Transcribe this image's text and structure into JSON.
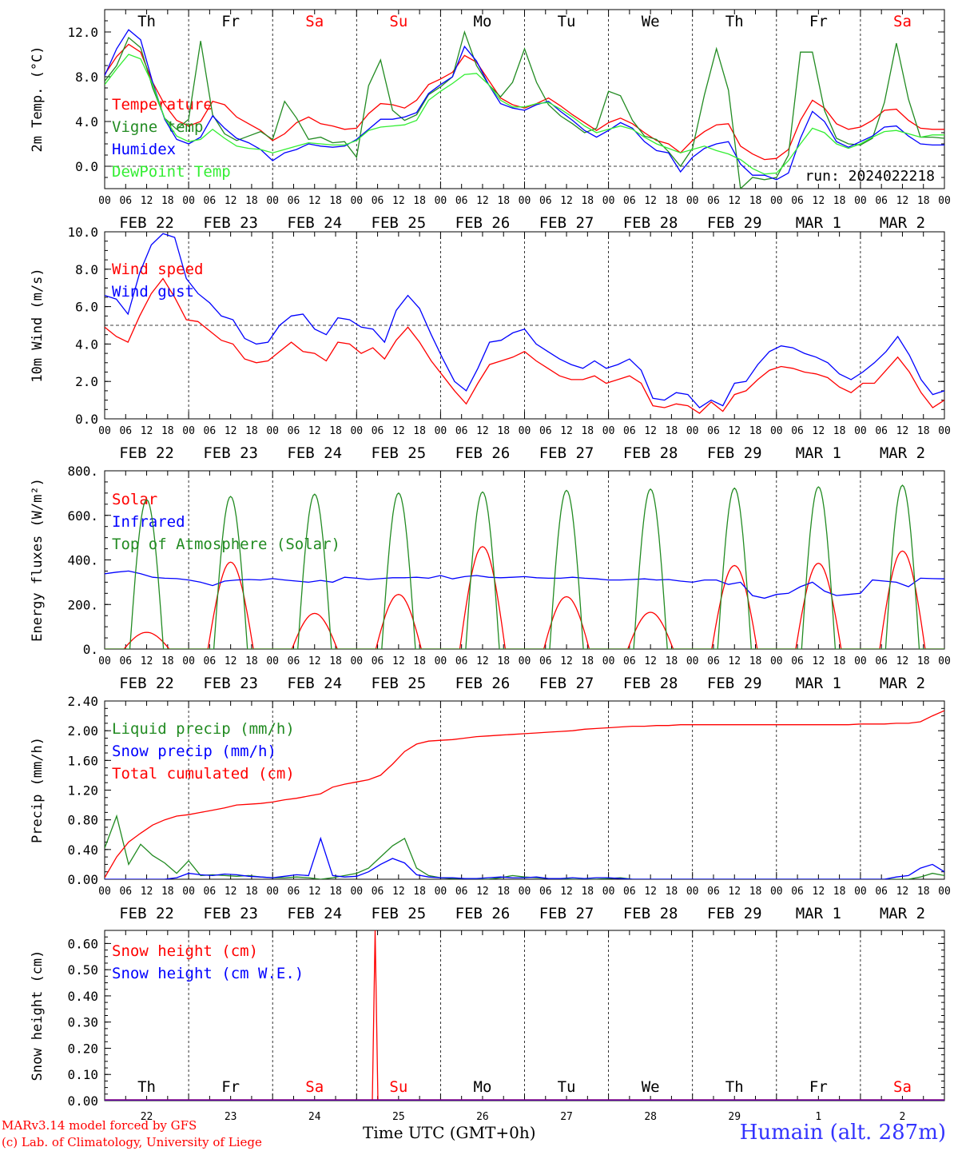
{
  "run_label": "run: 2024022218",
  "time_axis_label": "Time UTC (GMT+0h)",
  "model_credit": "MARv3.14 model forced by GFS",
  "lab_credit": "(c) Lab. of Climatology, University of Liege",
  "station_label": "Humain (alt. 287m)",
  "colors": {
    "red": "#ff0000",
    "green": "#228b22",
    "blue": "#0000ff",
    "lightgreen": "#33ee33",
    "purple": "#800080",
    "station": "#3333ff"
  },
  "chart_data": [
    {
      "type": "line",
      "ylabel": "2m Temp. (°C)",
      "ylim": [
        -2,
        14
      ],
      "yticks": [
        "12.0",
        "8.0",
        "4.0",
        "0.0"
      ],
      "reference_line": 0,
      "x": {
        "start": "2024-02-22 00:00",
        "end": "2024-03-03 00:00",
        "step_hours": 6
      },
      "day_names": [
        "Th",
        "Fr",
        "Sa",
        "Su",
        "Mo",
        "Tu",
        "We",
        "Th",
        "Fr",
        "Sa"
      ],
      "date_labels": [
        "FEB 22",
        "FEB 23",
        "FEB 24",
        "FEB 25",
        "FEB 26",
        "FEB 27",
        "FEB 28",
        "FEB 29",
        "MAR  1",
        "MAR  2"
      ],
      "hour_labels": [
        "00",
        "06",
        "12",
        "18"
      ],
      "series": [
        {
          "name": "Temperature",
          "color": "red",
          "values": [
            8.2,
            9.8,
            10.9,
            10.2,
            7.5,
            5.5,
            4.1,
            3.6,
            4.0,
            5.8,
            5.5,
            4.4,
            3.8,
            3.2,
            2.3,
            2.9,
            3.9,
            4.4,
            3.8,
            3.6,
            3.3,
            3.4,
            4.7,
            5.6,
            5.5,
            5.2,
            5.9,
            7.3,
            7.8,
            8.4,
            9.9,
            9.3,
            7.7,
            6.1,
            5.5,
            5.2,
            5.6,
            6.1,
            5.4,
            4.6,
            3.9,
            3.2,
            3.9,
            4.3,
            3.8,
            3.0,
            2.3,
            2.0,
            1.2,
            2.3,
            3.1,
            3.7,
            3.8,
            1.8,
            1.1,
            0.6,
            0.7,
            1.5,
            4.1,
            5.9,
            5.2,
            3.8,
            3.3,
            3.5,
            4.1,
            5.0,
            5.1,
            4.1,
            3.4,
            3.3,
            3.3
          ]
        },
        {
          "name": "Vigne temp",
          "color": "green",
          "values": [
            7.6,
            9.0,
            11.5,
            10.6,
            7.0,
            4.3,
            3.3,
            4.2,
            11.2,
            4.6,
            2.9,
            2.3,
            2.7,
            3.1,
            2.4,
            5.8,
            4.3,
            2.4,
            2.6,
            2.1,
            2.2,
            0.8,
            7.2,
            9.5,
            5.0,
            4.1,
            4.6,
            6.4,
            7.1,
            8.0,
            12.0,
            9.0,
            7.3,
            6.2,
            7.5,
            10.5,
            7.5,
            5.5,
            4.5,
            3.8,
            3.0,
            3.4,
            6.7,
            6.3,
            4.1,
            2.7,
            2.4,
            1.3,
            0.0,
            1.6,
            6.4,
            10.5,
            6.8,
            -2.0,
            -1.0,
            -1.2,
            -1.0,
            1.0,
            10.2,
            10.2,
            5.0,
            2.5,
            2.0,
            1.9,
            2.5,
            5.7,
            11.0,
            6.0,
            2.6,
            2.6,
            2.5
          ]
        },
        {
          "name": "Humidex",
          "color": "blue",
          "values": [
            8.1,
            10.5,
            12.2,
            11.3,
            7.5,
            4.2,
            2.4,
            2.0,
            2.6,
            4.5,
            3.4,
            2.5,
            2.1,
            1.5,
            0.5,
            1.2,
            1.5,
            2.0,
            1.8,
            1.7,
            1.8,
            2.4,
            3.3,
            4.2,
            4.2,
            4.4,
            4.8,
            6.5,
            7.3,
            8.0,
            10.7,
            9.4,
            7.3,
            5.6,
            5.2,
            5.0,
            5.5,
            5.8,
            4.9,
            4.1,
            3.2,
            2.6,
            3.2,
            3.9,
            3.4,
            2.2,
            1.4,
            1.2,
            -0.5,
            0.8,
            1.6,
            2.0,
            2.2,
            0.2,
            -0.8,
            -0.8,
            -1.2,
            -0.6,
            2.5,
            4.9,
            4.0,
            2.2,
            1.7,
            2.2,
            2.7,
            3.5,
            3.6,
            2.7,
            2.0,
            1.9,
            1.9
          ]
        },
        {
          "name": "DewPoint Temp",
          "color": "lightgreen",
          "values": [
            7.3,
            8.7,
            10.0,
            9.6,
            7.3,
            4.3,
            2.7,
            2.2,
            2.4,
            3.3,
            2.5,
            1.8,
            1.6,
            1.5,
            1.2,
            1.5,
            1.8,
            2.1,
            2.0,
            1.9,
            1.9,
            2.3,
            3.2,
            3.5,
            3.6,
            3.7,
            4.1,
            5.9,
            6.7,
            7.4,
            8.2,
            8.3,
            7.3,
            5.9,
            5.3,
            5.3,
            5.6,
            5.7,
            5.1,
            4.4,
            3.6,
            3.0,
            3.3,
            3.6,
            3.3,
            2.6,
            2.0,
            1.6,
            1.2,
            1.5,
            1.8,
            1.4,
            1.1,
            0.6,
            -0.2,
            -0.7,
            -0.6,
            0.5,
            2.0,
            3.4,
            3.0,
            2.0,
            1.6,
            2.0,
            2.6,
            3.1,
            3.2,
            2.9,
            2.6,
            2.8,
            2.8
          ]
        }
      ]
    },
    {
      "type": "line",
      "ylabel": "10m Wind (m/s)",
      "ylim": [
        0,
        10
      ],
      "yticks": [
        "10.0",
        "8.0",
        "6.0",
        "4.0",
        "2.0",
        "0.0"
      ],
      "reference_line": 5,
      "x": {
        "start": "2024-02-22 00:00",
        "end": "2024-03-03 00:00",
        "step_hours": 6
      },
      "date_labels": [
        "FEB 22",
        "FEB 23",
        "FEB 24",
        "FEB 25",
        "FEB 26",
        "FEB 27",
        "FEB 28",
        "FEB 29",
        "MAR  1",
        "MAR  2"
      ],
      "hour_labels": [
        "00",
        "06",
        "12",
        "18"
      ],
      "series": [
        {
          "name": "Wind speed",
          "color": "red",
          "values": [
            4.9,
            4.4,
            4.1,
            5.5,
            6.7,
            7.5,
            6.5,
            5.3,
            5.2,
            4.7,
            4.2,
            4.0,
            3.2,
            3.0,
            3.1,
            3.6,
            4.1,
            3.6,
            3.5,
            3.1,
            4.1,
            4.0,
            3.5,
            3.8,
            3.2,
            4.2,
            4.9,
            4.1,
            3.1,
            2.3,
            1.5,
            0.8,
            1.9,
            2.9,
            3.1,
            3.3,
            3.6,
            3.1,
            2.7,
            2.3,
            2.1,
            2.1,
            2.3,
            1.9,
            2.1,
            2.3,
            1.9,
            0.7,
            0.6,
            0.8,
            0.7,
            0.3,
            0.9,
            0.4,
            1.3,
            1.5,
            2.1,
            2.6,
            2.8,
            2.7,
            2.5,
            2.4,
            2.2,
            1.7,
            1.4,
            1.9,
            1.9,
            2.6,
            3.3,
            2.5,
            1.4,
            0.6,
            1.0
          ]
        },
        {
          "name": "Wind gust",
          "color": "blue",
          "values": [
            6.6,
            6.4,
            5.6,
            7.8,
            9.3,
            9.9,
            9.7,
            7.5,
            6.7,
            6.2,
            5.5,
            5.3,
            4.3,
            4.0,
            4.1,
            5.0,
            5.5,
            5.6,
            4.8,
            4.5,
            5.4,
            5.3,
            4.9,
            4.8,
            4.1,
            5.8,
            6.6,
            5.9,
            4.5,
            3.2,
            2.0,
            1.5,
            2.7,
            4.1,
            4.2,
            4.6,
            4.8,
            4.0,
            3.6,
            3.2,
            2.9,
            2.7,
            3.1,
            2.7,
            2.9,
            3.2,
            2.6,
            1.1,
            1.0,
            1.4,
            1.3,
            0.6,
            1.0,
            0.7,
            1.9,
            2.0,
            2.9,
            3.6,
            3.9,
            3.8,
            3.5,
            3.3,
            3.0,
            2.4,
            2.1,
            2.5,
            3.0,
            3.6,
            4.4,
            3.4,
            2.1,
            1.3,
            1.5
          ]
        }
      ]
    },
    {
      "type": "line",
      "ylabel": "Energy fluxes (W/m²)",
      "ylim": [
        0,
        800
      ],
      "yticks": [
        "800.",
        "600.",
        "400.",
        "200.",
        "0."
      ],
      "x": {
        "start": "2024-02-22 00:00",
        "end": "2024-03-03 00:00",
        "step_hours": 6
      },
      "date_labels": [
        "FEB 22",
        "FEB 23",
        "FEB 24",
        "FEB 25",
        "FEB 26",
        "FEB 27",
        "FEB 28",
        "FEB 29",
        "MAR  1",
        "MAR  2"
      ],
      "hour_labels": [
        "00",
        "06",
        "12",
        "18"
      ],
      "series": [
        {
          "name": "Solar",
          "color": "red",
          "solar_noon_hour": 12,
          "half_width_hours": 6.5,
          "daily_peak": [
            75,
            390,
            160,
            245,
            460,
            235,
            165,
            375,
            385,
            440
          ]
        },
        {
          "name": "Infrared",
          "color": "blue",
          "values": [
            338,
            345,
            350,
            338,
            322,
            318,
            316,
            310,
            300,
            285,
            305,
            310,
            312,
            310,
            316,
            310,
            305,
            300,
            308,
            300,
            322,
            318,
            312,
            316,
            320,
            320,
            322,
            318,
            330,
            315,
            325,
            330,
            322,
            320,
            322,
            325,
            320,
            318,
            318,
            322,
            318,
            315,
            310,
            310,
            312,
            315,
            310,
            312,
            305,
            300,
            310,
            310,
            290,
            300,
            240,
            228,
            245,
            250,
            280,
            300,
            260,
            240,
            245,
            250,
            310,
            305,
            300,
            280,
            318,
            316,
            315
          ]
        },
        {
          "name": "Top of Atmosphere (Solar)",
          "color": "green",
          "solar_noon_hour": 12,
          "half_width_hours": 4.8,
          "daily_peak": [
            670,
            685,
            695,
            700,
            705,
            712,
            718,
            722,
            728,
            735
          ]
        }
      ]
    },
    {
      "type": "line",
      "ylabel": "Precip (mm/h)",
      "ylim": [
        0,
        2.4
      ],
      "yticks": [
        "2.40",
        "2.00",
        "1.60",
        "1.20",
        "0.80",
        "0.40",
        "0.00"
      ],
      "x": {
        "start": "2024-02-22 00:00",
        "end": "2024-03-03 00:00",
        "step_hours": 6
      },
      "date_labels": [
        "FEB 22",
        "FEB 23",
        "FEB 24",
        "FEB 25",
        "FEB 26",
        "FEB 27",
        "FEB 28",
        "FEB 29",
        "MAR  1",
        "MAR  2"
      ],
      "hour_labels": [
        "00",
        "06",
        "12",
        "18"
      ],
      "series": [
        {
          "name": "Liquid precip (mm/h)",
          "color": "green",
          "values": [
            0.42,
            0.85,
            0.2,
            0.47,
            0.32,
            0.22,
            0.08,
            0.25,
            0.05,
            0.06,
            0.05,
            0.04,
            0.05,
            0.03,
            0.02,
            0.02,
            0.03,
            0.02,
            0.0,
            0.02,
            0.05,
            0.08,
            0.15,
            0.3,
            0.45,
            0.55,
            0.15,
            0.05,
            0.02,
            0.01,
            0.01,
            0.0,
            0.0,
            0.02,
            0.05,
            0.03,
            0.02,
            0.01,
            0.01,
            0.0,
            0.0,
            0.0,
            0.01,
            0.02,
            0.0,
            0.0,
            0.0,
            0.0,
            0.0,
            0.0,
            0.0,
            0.0,
            0.0,
            0.0,
            0.0,
            0.0,
            0.0,
            0.0,
            0.0,
            0.0,
            0.0,
            0.0,
            0.0,
            0.0,
            0.0,
            0.0,
            0.0,
            0.0,
            0.03,
            0.08,
            0.05
          ]
        },
        {
          "name": "Snow precip (mm/h)",
          "color": "blue",
          "values": [
            0.0,
            0.0,
            0.0,
            0.0,
            0.0,
            0.0,
            0.02,
            0.08,
            0.06,
            0.05,
            0.07,
            0.06,
            0.04,
            0.03,
            0.02,
            0.04,
            0.06,
            0.05,
            0.55,
            0.05,
            0.03,
            0.04,
            0.1,
            0.2,
            0.28,
            0.22,
            0.06,
            0.03,
            0.02,
            0.02,
            0.01,
            0.01,
            0.02,
            0.03,
            0.02,
            0.02,
            0.03,
            0.01,
            0.01,
            0.02,
            0.01,
            0.02,
            0.02,
            0.01,
            0.0,
            0.0,
            0.0,
            0.0,
            0.0,
            0.0,
            0.0,
            0.0,
            0.0,
            0.0,
            0.0,
            0.0,
            0.0,
            0.0,
            0.0,
            0.0,
            0.0,
            0.0,
            0.0,
            0.0,
            0.0,
            0.0,
            0.03,
            0.05,
            0.15,
            0.2,
            0.1
          ]
        },
        {
          "name": "Total cumulated (cm)",
          "color": "red",
          "values": [
            0.02,
            0.3,
            0.5,
            0.62,
            0.73,
            0.8,
            0.85,
            0.87,
            0.9,
            0.93,
            0.96,
            1.0,
            1.01,
            1.02,
            1.04,
            1.07,
            1.09,
            1.12,
            1.15,
            1.24,
            1.28,
            1.31,
            1.34,
            1.4,
            1.55,
            1.72,
            1.82,
            1.86,
            1.87,
            1.88,
            1.9,
            1.92,
            1.93,
            1.94,
            1.95,
            1.96,
            1.97,
            1.98,
            1.99,
            2.0,
            2.02,
            2.03,
            2.04,
            2.05,
            2.06,
            2.06,
            2.07,
            2.07,
            2.08,
            2.08,
            2.08,
            2.08,
            2.08,
            2.08,
            2.08,
            2.08,
            2.08,
            2.08,
            2.08,
            2.08,
            2.08,
            2.08,
            2.08,
            2.09,
            2.09,
            2.09,
            2.1,
            2.1,
            2.12,
            2.2,
            2.27
          ]
        }
      ]
    },
    {
      "type": "line",
      "ylabel": "Snow height (cm)",
      "ylim": [
        0,
        0.65
      ],
      "yticks": [
        "0.60",
        "0.50",
        "0.40",
        "0.30",
        "0.20",
        "0.10",
        "0.00"
      ],
      "x": {
        "start": "2024-02-22 00:00",
        "end": "2024-03-03 00:00",
        "step_hours": 6
      },
      "day_names": [
        "Th",
        "Fr",
        "Sa",
        "Su",
        "Mo",
        "Tu",
        "We",
        "Th",
        "Fr",
        "Sa"
      ],
      "day_numbers": [
        "22",
        "23",
        "24",
        "25",
        "26",
        "27",
        "28",
        "29",
        "1",
        "2"
      ],
      "series": [
        {
          "name": "Snow height (cm)",
          "color": "red",
          "spike": {
            "t_hours": 77.3,
            "peak": 0.65,
            "half_width_hours": 0.8
          }
        },
        {
          "name": "Snow height (cm W.E.)",
          "color": "blue",
          "values": [
            0,
            0
          ]
        }
      ]
    }
  ]
}
